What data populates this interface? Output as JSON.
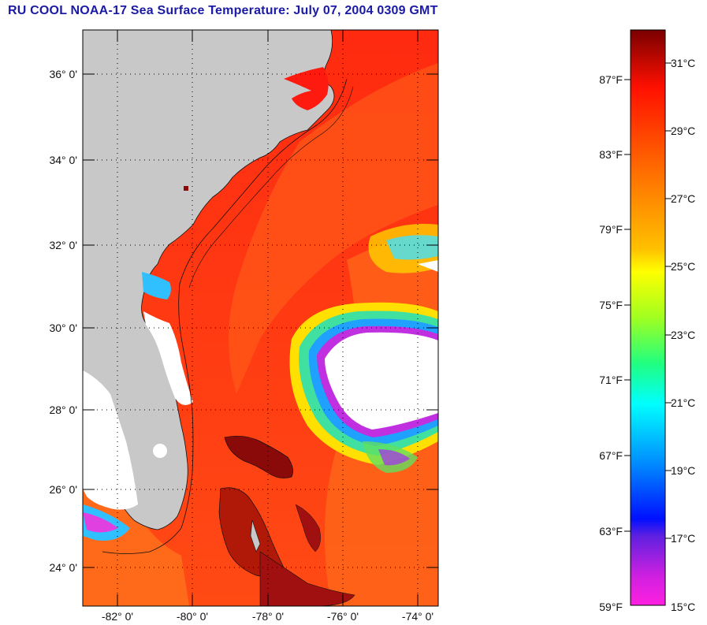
{
  "title": "RU COOL  NOAA-17  Sea Surface Temperature:  July 07, 2004 0309 GMT",
  "map": {
    "lat_labels": [
      "36° 0'",
      "34° 0'",
      "32° 0'",
      "30° 0'",
      "28° 0'",
      "26° 0'",
      "24° 0'"
    ],
    "lon_labels": [
      "-82° 0'",
      "-80° 0'",
      "-78° 0'",
      "-76° 0'",
      "-74° 0'"
    ],
    "land_color": "#c8c8c8",
    "cloud_color": "#ffffff"
  },
  "colorbar": {
    "fahrenheit_labels": [
      "87°F",
      "83°F",
      "79°F",
      "75°F",
      "71°F",
      "67°F",
      "63°F",
      "59°F"
    ],
    "celsius_labels": [
      "31°C",
      "29°C",
      "27°C",
      "25°C",
      "23°C",
      "21°C",
      "19°C",
      "17°C",
      "15°C"
    ]
  }
}
